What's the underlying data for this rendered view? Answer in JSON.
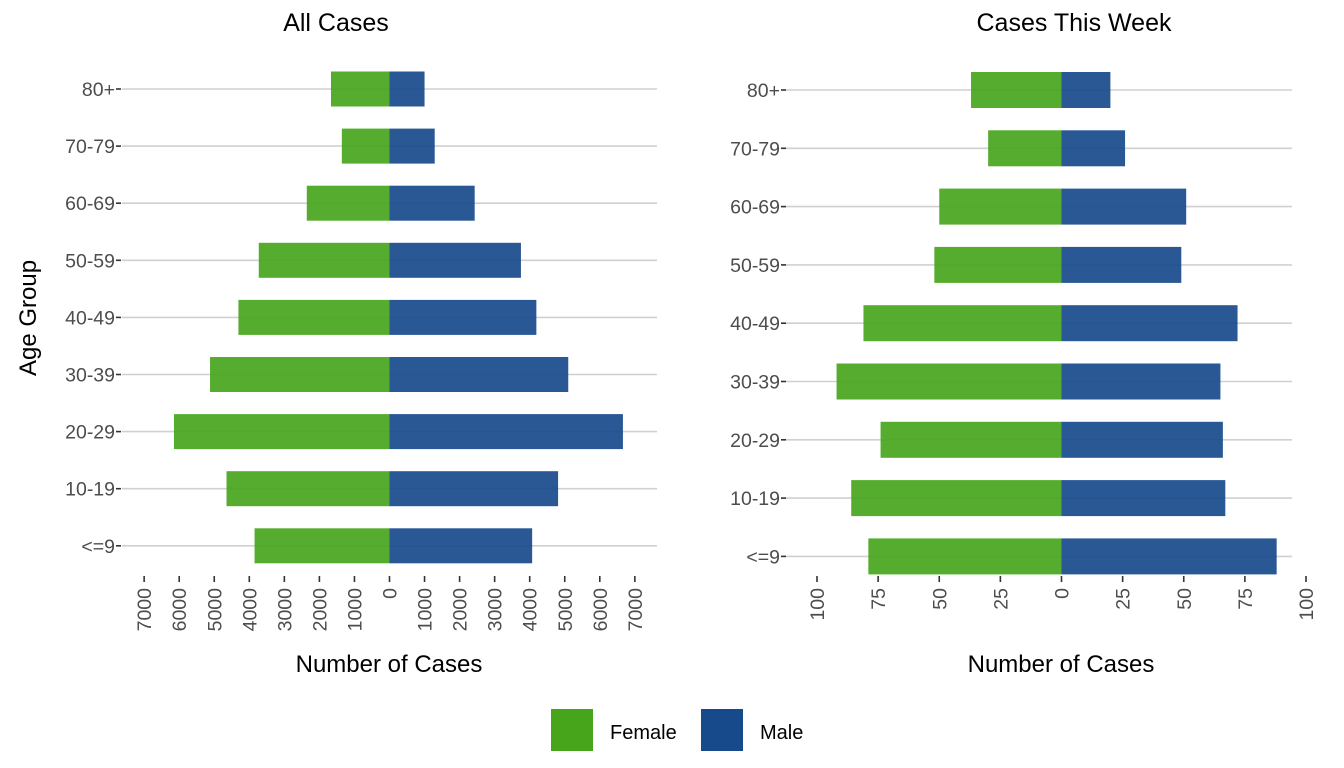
{
  "chart_data": [
    {
      "type": "bar",
      "orientation": "horizontal",
      "layout": "population-pyramid",
      "title": "All Cases",
      "xlabel": "Number of Cases",
      "ylabel": "Age Group",
      "categories": [
        "<=9",
        "10-19",
        "20-29",
        "30-39",
        "40-49",
        "50-59",
        "60-69",
        "70-79",
        "80+"
      ],
      "series": [
        {
          "name": "Female",
          "direction": "left",
          "values": [
            3850,
            4650,
            6150,
            5120,
            4310,
            3730,
            2360,
            1360,
            1670
          ]
        },
        {
          "name": "Male",
          "direction": "right",
          "values": [
            4070,
            4810,
            6660,
            5100,
            4190,
            3750,
            2430,
            1290,
            1000
          ]
        }
      ],
      "xlim": [
        -7500,
        7600
      ],
      "xticks": [
        -7000,
        -6000,
        -5000,
        -4000,
        -3000,
        -2000,
        -1000,
        0,
        1000,
        2000,
        3000,
        4000,
        5000,
        6000,
        7000
      ],
      "xtick_labels": [
        "7000",
        "6000",
        "5000",
        "4000",
        "3000",
        "2000",
        "1000",
        "0",
        "1000",
        "2000",
        "3000",
        "4000",
        "5000",
        "6000",
        "7000"
      ],
      "grid": "horizontal-major"
    },
    {
      "type": "bar",
      "orientation": "horizontal",
      "layout": "population-pyramid",
      "title": "Cases This Week",
      "xlabel": "Number of Cases",
      "ylabel": "",
      "categories": [
        "<=9",
        "10-19",
        "20-29",
        "30-39",
        "40-49",
        "50-59",
        "60-69",
        "70-79",
        "80+"
      ],
      "series": [
        {
          "name": "Female",
          "direction": "left",
          "values": [
            79,
            86,
            74,
            92,
            81,
            52,
            50,
            30,
            37
          ]
        },
        {
          "name": "Male",
          "direction": "right",
          "values": [
            88,
            67,
            66,
            65,
            72,
            49,
            51,
            26,
            20
          ]
        }
      ],
      "xlim": [
        -101,
        101
      ],
      "xticks": [
        -100,
        -75,
        -50,
        -25,
        0,
        25,
        50,
        75,
        100
      ],
      "xtick_labels": [
        "100",
        "75",
        "50",
        "25",
        "0",
        "25",
        "50",
        "75",
        "100"
      ],
      "grid": "horizontal-major"
    }
  ],
  "legend": {
    "position": "bottom",
    "items": [
      {
        "label": "Female",
        "color": "#47a51c"
      },
      {
        "label": "Male",
        "color": "#174a8b"
      }
    ]
  },
  "colors": {
    "female_bar": "#47a51c",
    "male_bar": "#174a8b",
    "bar_opacity": 0.92
  }
}
